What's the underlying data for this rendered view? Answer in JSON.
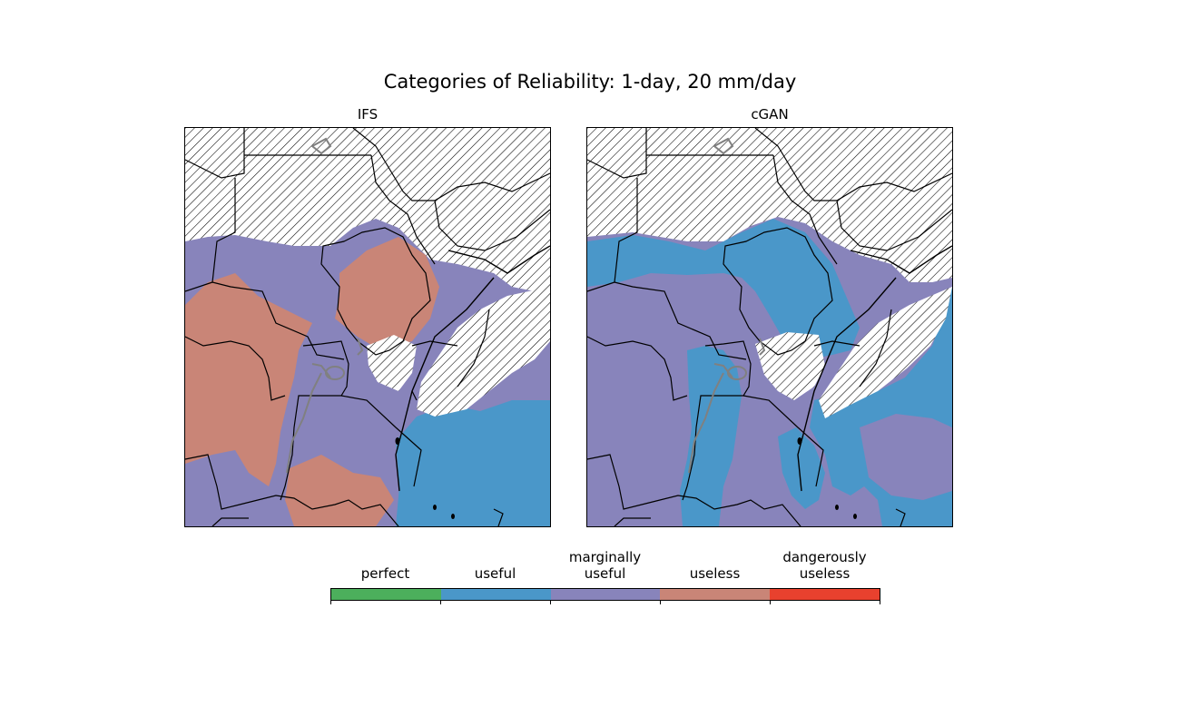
{
  "title": "Categories of Reliability: 1-day, 20 mm/day",
  "panels": [
    {
      "title": "IFS"
    },
    {
      "title": "cGAN"
    }
  ],
  "colorbar": {
    "categories": [
      {
        "label": "perfect",
        "color": "#4caf5c"
      },
      {
        "label": "useful",
        "color": "#4a97c9"
      },
      {
        "label": "marginally\nuseful",
        "color": "#8884bb"
      },
      {
        "label": "useless",
        "color": "#c98577"
      },
      {
        "label": "dangerously\nuseless",
        "color": "#e8412e"
      }
    ]
  }
}
